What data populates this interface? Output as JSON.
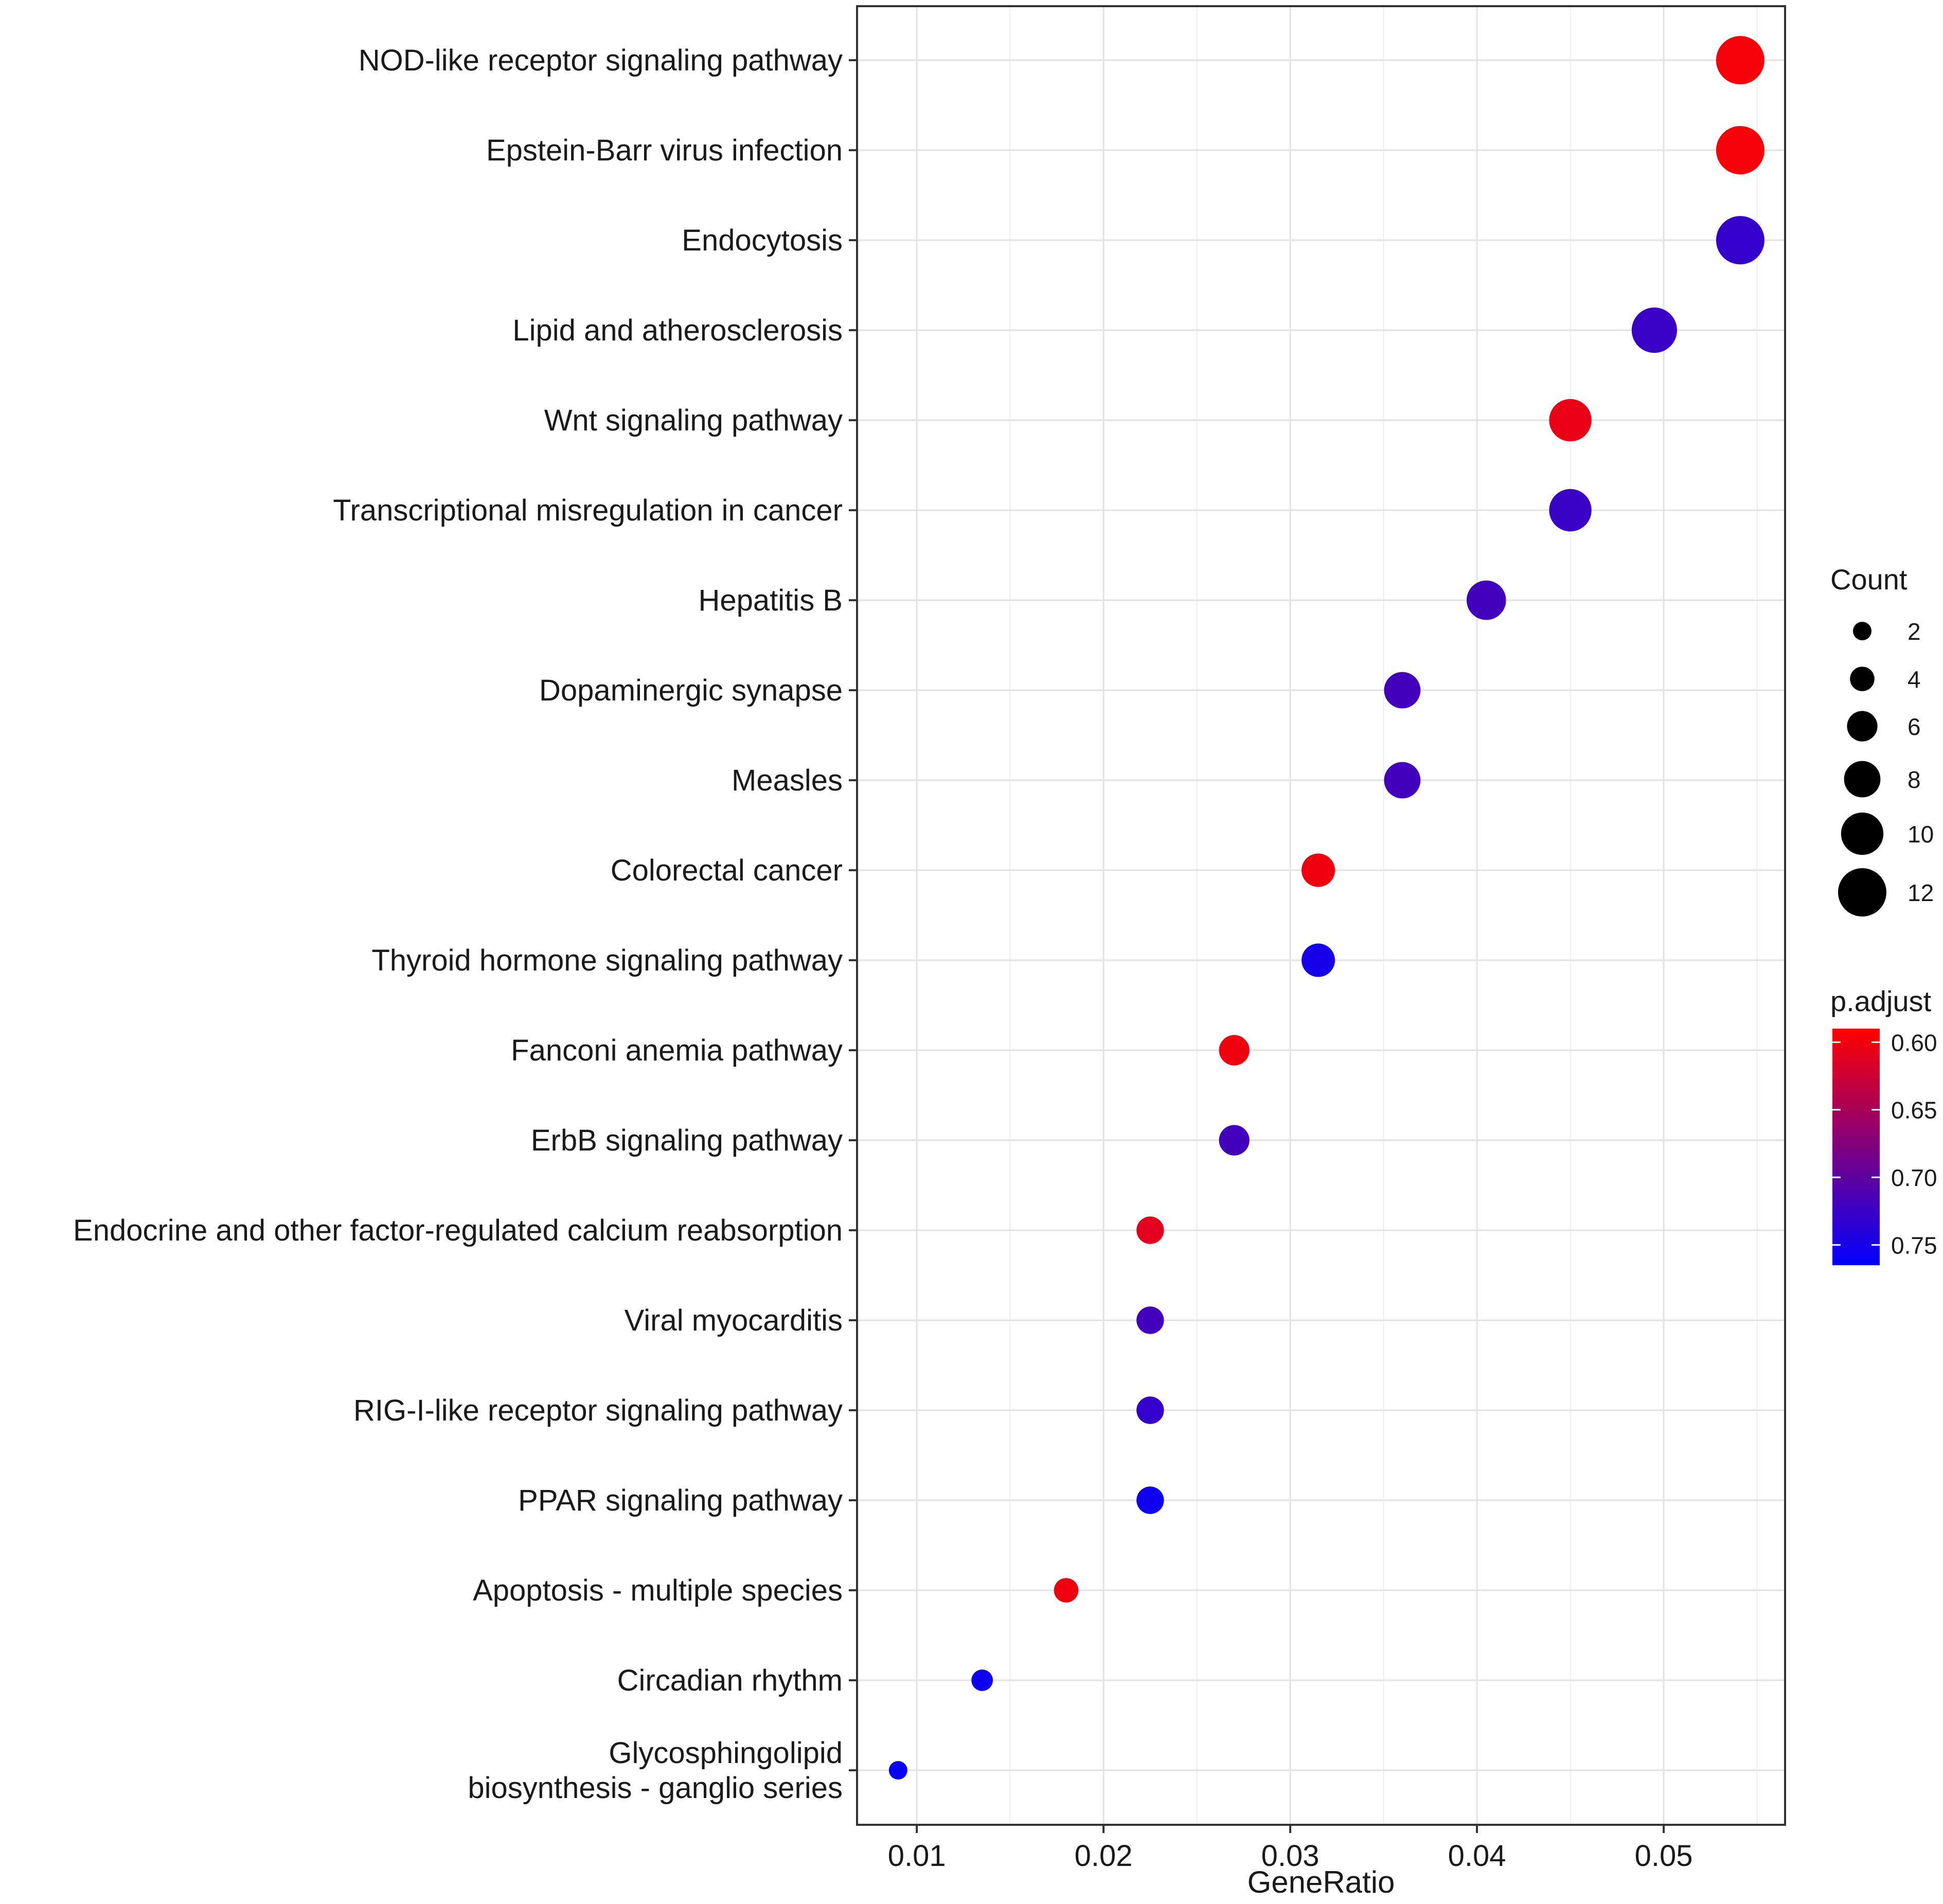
{
  "chart_data": {
    "type": "scatter",
    "subtype": "dot",
    "xlabel": "GeneRatio",
    "ylabel": "",
    "xlim": [
      0.0068,
      0.0565
    ],
    "xticks": [
      0.01,
      0.02,
      0.03,
      0.04,
      0.05
    ],
    "xtick_labels": [
      "0.01",
      "0.02",
      "0.03",
      "0.04",
      "0.05"
    ],
    "grid": true,
    "categories": [
      "NOD-like receptor signaling pathway",
      "Epstein-Barr virus infection",
      "Endocytosis",
      "Lipid and atherosclerosis",
      "Wnt signaling pathway",
      "Transcriptional misregulation in cancer",
      "Hepatitis B",
      "Dopaminergic synapse",
      "Measles",
      "Colorectal cancer",
      "Thyroid hormone signaling pathway",
      "Fanconi anemia pathway",
      "ErbB signaling pathway",
      "Endocrine and other factor-regulated calcium reabsorption",
      "Viral myocarditis",
      "RIG-I-like receptor signaling pathway",
      "PPAR signaling pathway",
      "Apoptosis - multiple species",
      "Circadian rhythm",
      "Glycosphingolipid biosynthesis - ganglio series"
    ],
    "category_lines": [
      [
        "NOD-like receptor signaling pathway"
      ],
      [
        "Epstein-Barr virus infection"
      ],
      [
        "Endocytosis"
      ],
      [
        "Lipid and atherosclerosis"
      ],
      [
        "Wnt signaling pathway"
      ],
      [
        "Transcriptional misregulation in cancer"
      ],
      [
        "Hepatitis B"
      ],
      [
        "Dopaminergic synapse"
      ],
      [
        "Measles"
      ],
      [
        "Colorectal cancer"
      ],
      [
        "Thyroid hormone signaling pathway"
      ],
      [
        "Fanconi anemia pathway"
      ],
      [
        "ErbB signaling pathway"
      ],
      [
        "Endocrine and other factor-regulated calcium reabsorption"
      ],
      [
        "Viral myocarditis"
      ],
      [
        "RIG-I-like receptor signaling pathway"
      ],
      [
        "PPAR signaling pathway"
      ],
      [
        "Apoptosis - multiple species"
      ],
      [
        "Circadian rhythm"
      ],
      [
        "Glycosphingolipid",
        "biosynthesis - ganglio series"
      ]
    ],
    "gene_ratio": [
      0.0541,
      0.0541,
      0.0541,
      0.0495,
      0.045,
      0.045,
      0.0405,
      0.036,
      0.036,
      0.0315,
      0.0315,
      0.027,
      0.027,
      0.0225,
      0.0225,
      0.0225,
      0.0225,
      0.018,
      0.0135,
      0.009
    ],
    "count": [
      12,
      12,
      12,
      11,
      10,
      10,
      9,
      8,
      8,
      7,
      7,
      6,
      6,
      5,
      5,
      5,
      5,
      4,
      3,
      2
    ],
    "p_adjust": [
      0.595,
      0.595,
      0.73,
      0.725,
      0.605,
      0.725,
      0.72,
      0.72,
      0.72,
      0.6,
      0.75,
      0.6,
      0.72,
      0.61,
      0.72,
      0.73,
      0.755,
      0.6,
      0.755,
      0.76
    ],
    "size_legend": {
      "title": "Count",
      "values": [
        2,
        4,
        6,
        8,
        10,
        12
      ],
      "labels": [
        "2",
        "4",
        "6",
        "8",
        "10",
        "12"
      ]
    },
    "color_legend": {
      "title": "p.adjust",
      "range": [
        0.59,
        0.765
      ],
      "values": [
        0.6,
        0.65,
        0.7,
        0.75
      ],
      "labels": [
        "0.60",
        "0.65",
        "0.70",
        "0.75"
      ],
      "low_color": "#ff0000",
      "high_color": "#0000ff"
    }
  }
}
